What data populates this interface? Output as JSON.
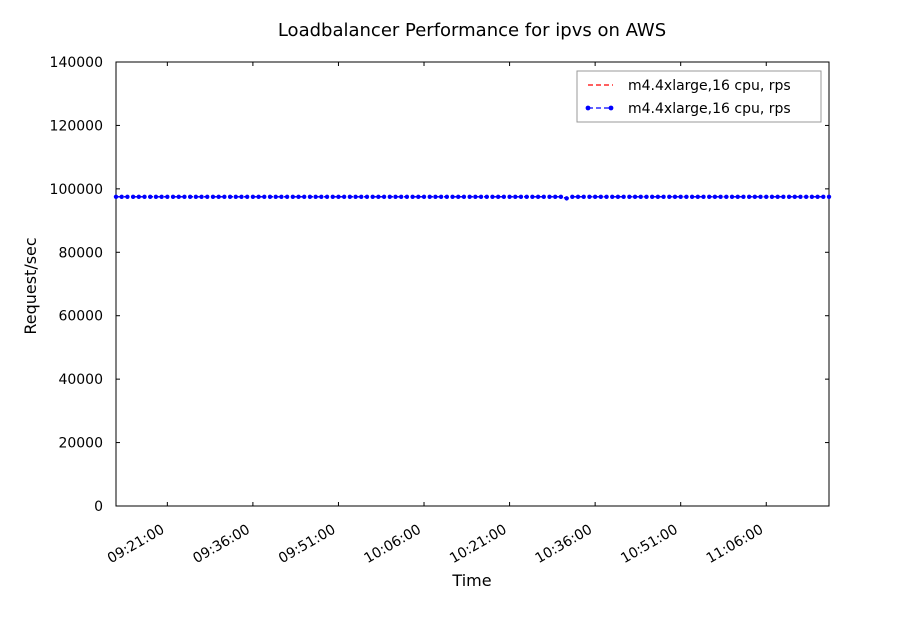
{
  "chart_data": {
    "type": "line",
    "title": "Loadbalancer Performance for ipvs on AWS",
    "xlabel": "Time",
    "ylabel": "Request/sec",
    "ylim": [
      0,
      140000
    ],
    "y_ticks": [
      "0",
      "20000",
      "40000",
      "60000",
      "80000",
      "100000",
      "120000",
      "140000"
    ],
    "y_tick_values": [
      0,
      20000,
      40000,
      60000,
      80000,
      100000,
      120000,
      140000
    ],
    "xlim": [
      "09:12:00",
      "11:17:00"
    ],
    "x_ticks": [
      "09:21:00",
      "09:36:00",
      "09:51:00",
      "10:06:00",
      "10:21:00",
      "10:36:00",
      "10:51:00",
      "11:06:00"
    ],
    "grid": false,
    "legend_position": "top-right",
    "series": [
      {
        "name": "m4.4xlarge,16 cpu, rps",
        "color": "#ff0000",
        "style": "dashed",
        "x_start": "09:12:00",
        "x_end": "11:17:00",
        "value": 97500,
        "dip": {
          "x": "10:31:00",
          "value": 97000
        }
      },
      {
        "name": "m4.4xlarge,16 cpu, rps",
        "color": "#0000ff",
        "style": "dashed-dots",
        "x_start": "09:12:00",
        "x_end": "11:17:00",
        "value": 97500,
        "dip": {
          "x": "10:31:00",
          "value": 97000
        }
      }
    ]
  }
}
